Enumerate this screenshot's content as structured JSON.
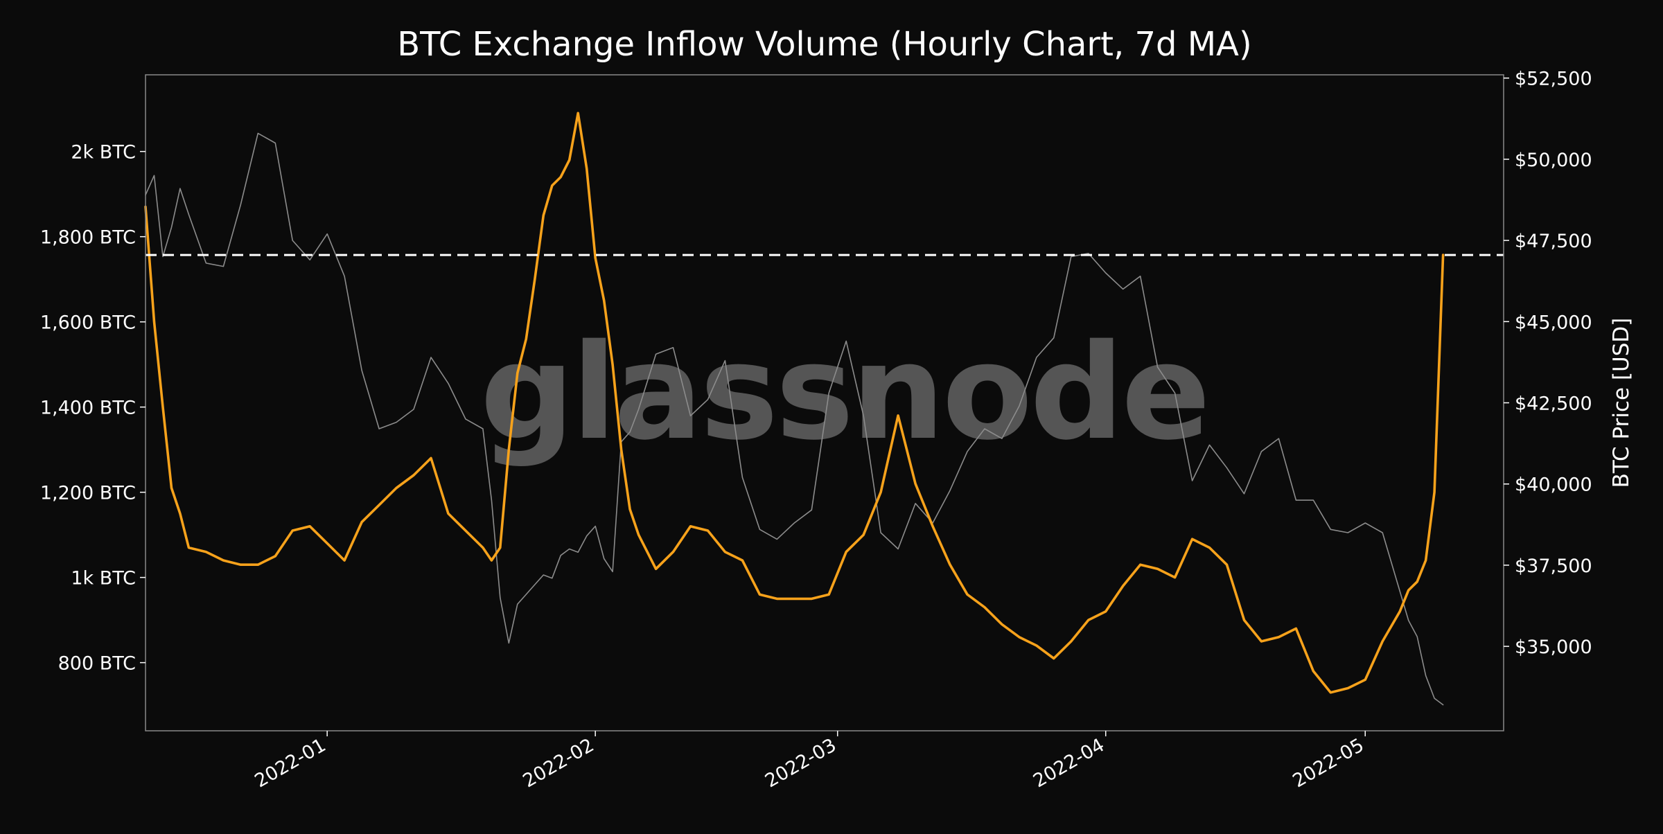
{
  "chart_data": {
    "type": "line",
    "title": "BTC Exchange Inflow Volume (Hourly Chart, 7d MA)",
    "watermark": "glassnode",
    "xlabel": "",
    "ylabel": "",
    "y2label": "BTC Price [USD]",
    "x_range": [
      "2021-12-11",
      "2022-05-17"
    ],
    "x_ticks": [
      "2022-01-01",
      "2022-02-01",
      "2022-03-01",
      "2022-04-01",
      "2022-05-01"
    ],
    "x_tick_labels": [
      "2022-01",
      "2022-02",
      "2022-03",
      "2022-04",
      "2022-05"
    ],
    "ylim": [
      640,
      2180
    ],
    "y_ticks": [
      800,
      1000,
      1200,
      1400,
      1600,
      1800,
      2000
    ],
    "y_tick_labels": [
      "800 BTC",
      "1k BTC",
      "1,200 BTC",
      "1,400 BTC",
      "1,600 BTC",
      "1,800 BTC",
      "2k BTC"
    ],
    "y2lim": [
      32400,
      52600
    ],
    "y2_ticks": [
      35000,
      37500,
      40000,
      42500,
      45000,
      47500,
      50000,
      52500
    ],
    "y2_tick_labels": [
      "$35,000",
      "$37,500",
      "$40,000",
      "$42,500",
      "$45,000",
      "$47,500",
      "$50,000",
      "$52,500"
    ],
    "threshold": 1757,
    "grid": false,
    "colors": {
      "inflow": "#f7a21b",
      "price": "#8c8c8c",
      "threshold": "#ffffff",
      "background": "#0b0b0b",
      "frame": "#8a8a8a"
    },
    "series": [
      {
        "axis": "left",
        "color": "#f7a21b",
        "x": [
          "2021-12-11",
          "2021-12-12",
          "2021-12-13",
          "2021-12-14",
          "2021-12-15",
          "2021-12-16",
          "2021-12-18",
          "2021-12-20",
          "2021-12-22",
          "2021-12-24",
          "2021-12-26",
          "2021-12-28",
          "2021-12-30",
          "2022-01-01",
          "2022-01-03",
          "2022-01-05",
          "2022-01-07",
          "2022-01-09",
          "2022-01-11",
          "2022-01-13",
          "2022-01-15",
          "2022-01-17",
          "2022-01-19",
          "2022-01-20",
          "2022-01-21",
          "2022-01-22",
          "2022-01-23",
          "2022-01-24",
          "2022-01-25",
          "2022-01-26",
          "2022-01-27",
          "2022-01-28",
          "2022-01-29",
          "2022-01-30",
          "2022-01-31",
          "2022-02-01",
          "2022-02-02",
          "2022-02-03",
          "2022-02-04",
          "2022-02-05",
          "2022-02-06",
          "2022-02-08",
          "2022-02-10",
          "2022-02-12",
          "2022-02-14",
          "2022-02-16",
          "2022-02-18",
          "2022-02-20",
          "2022-02-22",
          "2022-02-24",
          "2022-02-26",
          "2022-02-28",
          "2022-03-02",
          "2022-03-04",
          "2022-03-06",
          "2022-03-08",
          "2022-03-10",
          "2022-03-12",
          "2022-03-14",
          "2022-03-16",
          "2022-03-18",
          "2022-03-20",
          "2022-03-22",
          "2022-03-24",
          "2022-03-26",
          "2022-03-28",
          "2022-03-30",
          "2022-04-01",
          "2022-04-03",
          "2022-04-05",
          "2022-04-07",
          "2022-04-09",
          "2022-04-11",
          "2022-04-13",
          "2022-04-15",
          "2022-04-17",
          "2022-04-19",
          "2022-04-21",
          "2022-04-23",
          "2022-04-25",
          "2022-04-27",
          "2022-04-29",
          "2022-05-01",
          "2022-05-03",
          "2022-05-05",
          "2022-05-06",
          "2022-05-07",
          "2022-05-08",
          "2022-05-09",
          "2022-05-10"
        ],
        "values": [
          1870,
          1600,
          1400,
          1210,
          1150,
          1070,
          1060,
          1040,
          1030,
          1030,
          1050,
          1110,
          1120,
          1080,
          1040,
          1130,
          1170,
          1210,
          1240,
          1280,
          1150,
          1110,
          1070,
          1040,
          1070,
          1300,
          1480,
          1560,
          1700,
          1850,
          1920,
          1940,
          1980,
          2090,
          1960,
          1750,
          1650,
          1500,
          1300,
          1160,
          1100,
          1020,
          1060,
          1120,
          1110,
          1060,
          1040,
          960,
          950,
          950,
          950,
          960,
          1060,
          1100,
          1200,
          1380,
          1220,
          1120,
          1030,
          960,
          930,
          890,
          860,
          840,
          810,
          850,
          900,
          920,
          980,
          1030,
          1020,
          1000,
          1090,
          1070,
          1030,
          900,
          850,
          860,
          880,
          780,
          730,
          740,
          760,
          850,
          920,
          970,
          990,
          1040,
          1200,
          1757
        ]
      },
      {
        "axis": "right",
        "color": "#8c8c8c",
        "x": [
          "2021-12-11",
          "2021-12-12",
          "2021-12-13",
          "2021-12-14",
          "2021-12-15",
          "2021-12-16",
          "2021-12-18",
          "2021-12-20",
          "2021-12-22",
          "2021-12-24",
          "2021-12-26",
          "2021-12-28",
          "2021-12-30",
          "2022-01-01",
          "2022-01-03",
          "2022-01-05",
          "2022-01-07",
          "2022-01-09",
          "2022-01-11",
          "2022-01-13",
          "2022-01-15",
          "2022-01-17",
          "2022-01-19",
          "2022-01-20",
          "2022-01-21",
          "2022-01-22",
          "2022-01-23",
          "2022-01-24",
          "2022-01-25",
          "2022-01-26",
          "2022-01-27",
          "2022-01-28",
          "2022-01-29",
          "2022-01-30",
          "2022-01-31",
          "2022-02-01",
          "2022-02-02",
          "2022-02-03",
          "2022-02-04",
          "2022-02-05",
          "2022-02-06",
          "2022-02-08",
          "2022-02-10",
          "2022-02-12",
          "2022-02-14",
          "2022-02-16",
          "2022-02-18",
          "2022-02-20",
          "2022-02-22",
          "2022-02-24",
          "2022-02-26",
          "2022-02-28",
          "2022-03-02",
          "2022-03-04",
          "2022-03-06",
          "2022-03-08",
          "2022-03-10",
          "2022-03-12",
          "2022-03-14",
          "2022-03-16",
          "2022-03-18",
          "2022-03-20",
          "2022-03-22",
          "2022-03-24",
          "2022-03-26",
          "2022-03-28",
          "2022-03-30",
          "2022-04-01",
          "2022-04-03",
          "2022-04-05",
          "2022-04-07",
          "2022-04-09",
          "2022-04-11",
          "2022-04-13",
          "2022-04-15",
          "2022-04-17",
          "2022-04-19",
          "2022-04-21",
          "2022-04-23",
          "2022-04-25",
          "2022-04-27",
          "2022-04-29",
          "2022-05-01",
          "2022-05-03",
          "2022-05-05",
          "2022-05-06",
          "2022-05-07",
          "2022-05-08",
          "2022-05-09",
          "2022-05-10"
        ],
        "values": [
          48900,
          49500,
          47000,
          47900,
          49100,
          48300,
          46800,
          46700,
          48600,
          50800,
          50500,
          47500,
          46900,
          47700,
          46400,
          43500,
          41700,
          41900,
          42300,
          43900,
          43100,
          42000,
          41700,
          39500,
          36500,
          35100,
          36300,
          36600,
          36900,
          37200,
          37100,
          37800,
          38000,
          37900,
          38400,
          38700,
          37700,
          37300,
          41300,
          41600,
          42300,
          44000,
          44200,
          42100,
          42600,
          43800,
          40200,
          38600,
          38300,
          38800,
          39200,
          42800,
          44400,
          42100,
          38500,
          38000,
          39400,
          38800,
          39800,
          41000,
          41700,
          41400,
          42400,
          43900,
          44500,
          47000,
          47100,
          46500,
          46000,
          46400,
          43600,
          42800,
          40100,
          41200,
          40500,
          39700,
          41000,
          41400,
          39500,
          39500,
          38600,
          38500,
          38800,
          38500,
          36700,
          35800,
          35300,
          34100,
          33400,
          33200
        ]
      }
    ]
  }
}
